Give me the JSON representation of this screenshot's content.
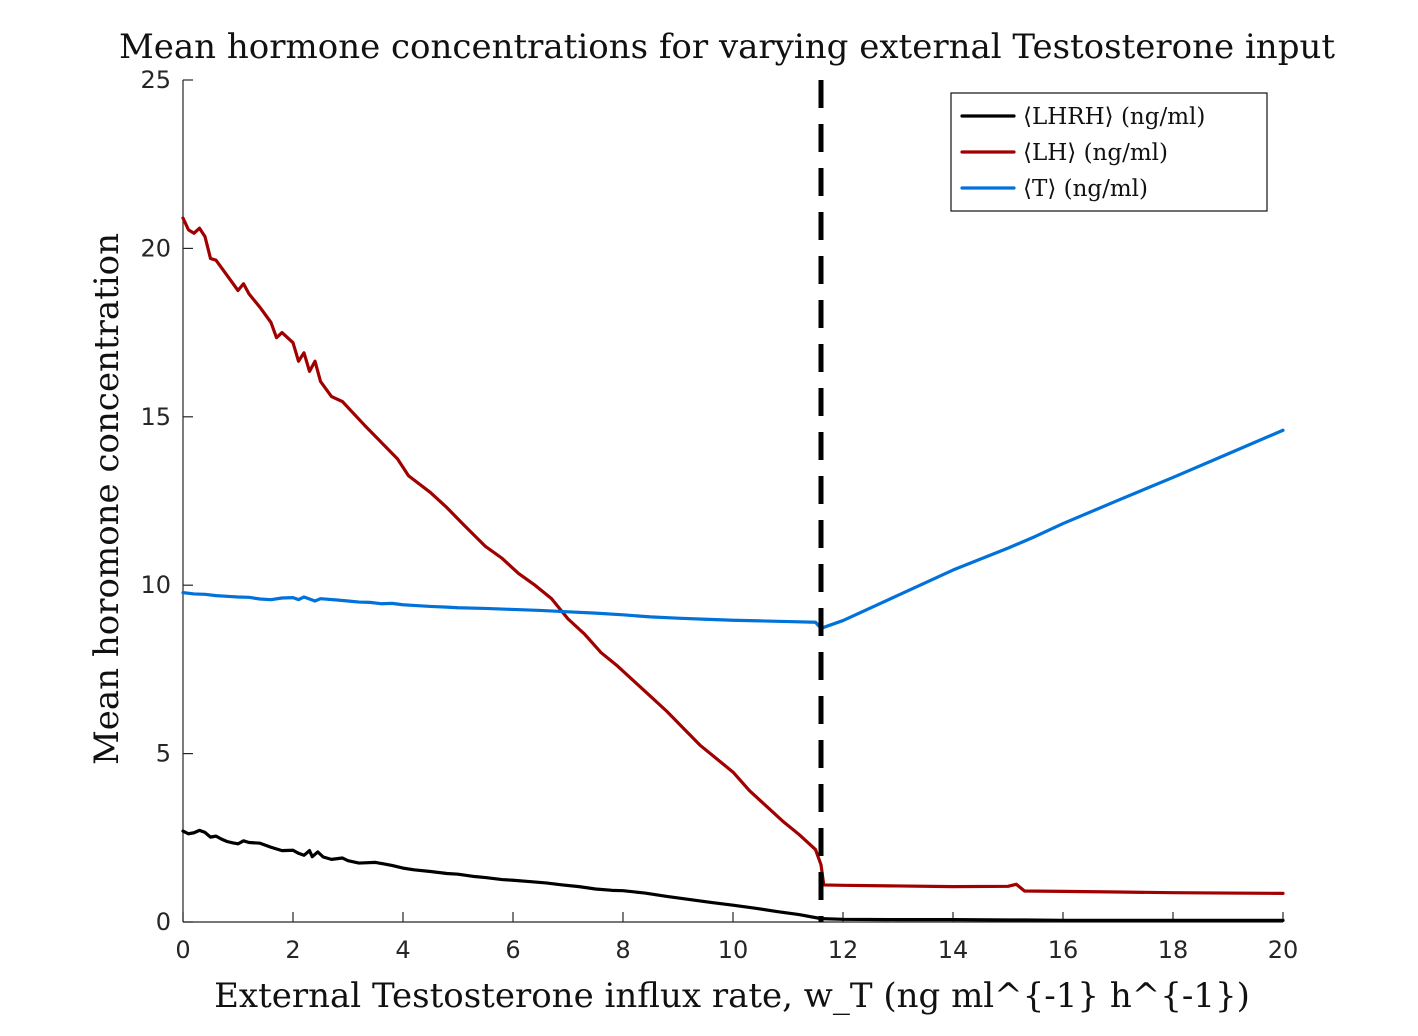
{
  "chart_data": {
    "type": "line",
    "title": "Mean hormone concentrations for varying external Testosterone input",
    "xlabel": "External Testosterone influx rate, w_T (ng ml^{-1} h^{-1})",
    "ylabel": "Mean horomone concentration",
    "xlim": [
      0,
      20
    ],
    "ylim": [
      0,
      25
    ],
    "xticks": [
      0,
      2,
      4,
      6,
      8,
      10,
      12,
      14,
      16,
      18,
      20
    ],
    "yticks": [
      0,
      5,
      10,
      15,
      20,
      25
    ],
    "grid": false,
    "legend_position": "top-right",
    "threshold_x": 11.6,
    "series": [
      {
        "name": "⟨LHRH⟩ (ng/ml)",
        "color": "#000000",
        "points": [
          [
            0,
            2.7
          ],
          [
            0.1,
            2.62
          ],
          [
            0.2,
            2.65
          ],
          [
            0.3,
            2.72
          ],
          [
            0.4,
            2.66
          ],
          [
            0.5,
            2.52
          ],
          [
            0.6,
            2.55
          ],
          [
            0.7,
            2.46
          ],
          [
            0.8,
            2.39
          ],
          [
            0.9,
            2.35
          ],
          [
            1.0,
            2.32
          ],
          [
            1.1,
            2.41
          ],
          [
            1.2,
            2.36
          ],
          [
            1.4,
            2.34
          ],
          [
            1.6,
            2.22
          ],
          [
            1.8,
            2.12
          ],
          [
            2.0,
            2.13
          ],
          [
            2.1,
            2.04
          ],
          [
            2.2,
            1.98
          ],
          [
            2.3,
            2.12
          ],
          [
            2.35,
            1.94
          ],
          [
            2.45,
            2.08
          ],
          [
            2.55,
            1.93
          ],
          [
            2.7,
            1.86
          ],
          [
            2.9,
            1.9
          ],
          [
            3.0,
            1.82
          ],
          [
            3.2,
            1.75
          ],
          [
            3.5,
            1.77
          ],
          [
            3.8,
            1.68
          ],
          [
            4.0,
            1.6
          ],
          [
            4.2,
            1.55
          ],
          [
            4.5,
            1.5
          ],
          [
            4.8,
            1.44
          ],
          [
            5.0,
            1.42
          ],
          [
            5.3,
            1.35
          ],
          [
            5.5,
            1.32
          ],
          [
            5.8,
            1.26
          ],
          [
            6.0,
            1.24
          ],
          [
            6.3,
            1.2
          ],
          [
            6.6,
            1.16
          ],
          [
            6.9,
            1.1
          ],
          [
            7.2,
            1.05
          ],
          [
            7.5,
            0.98
          ],
          [
            7.8,
            0.94
          ],
          [
            8.0,
            0.93
          ],
          [
            8.4,
            0.86
          ],
          [
            8.8,
            0.76
          ],
          [
            9.2,
            0.67
          ],
          [
            9.6,
            0.58
          ],
          [
            10.0,
            0.5
          ],
          [
            10.4,
            0.41
          ],
          [
            10.8,
            0.31
          ],
          [
            11.2,
            0.22
          ],
          [
            11.6,
            0.1
          ],
          [
            12.0,
            0.08
          ],
          [
            13.0,
            0.07
          ],
          [
            14.0,
            0.07
          ],
          [
            15.0,
            0.06
          ],
          [
            15.3,
            0.06
          ],
          [
            16.0,
            0.05
          ],
          [
            17.0,
            0.05
          ],
          [
            18.0,
            0.05
          ],
          [
            19.0,
            0.05
          ],
          [
            20.0,
            0.05
          ]
        ]
      },
      {
        "name": "⟨LH⟩ (ng/ml)",
        "color": "#a10000",
        "points": [
          [
            0,
            20.9
          ],
          [
            0.1,
            20.55
          ],
          [
            0.2,
            20.45
          ],
          [
            0.3,
            20.6
          ],
          [
            0.4,
            20.35
          ],
          [
            0.5,
            19.7
          ],
          [
            0.6,
            19.65
          ],
          [
            0.8,
            19.2
          ],
          [
            1.0,
            18.75
          ],
          [
            1.1,
            18.95
          ],
          [
            1.2,
            18.65
          ],
          [
            1.4,
            18.25
          ],
          [
            1.6,
            17.8
          ],
          [
            1.7,
            17.35
          ],
          [
            1.8,
            17.5
          ],
          [
            2.0,
            17.2
          ],
          [
            2.1,
            16.65
          ],
          [
            2.2,
            16.9
          ],
          [
            2.3,
            16.35
          ],
          [
            2.4,
            16.65
          ],
          [
            2.5,
            16.05
          ],
          [
            2.7,
            15.6
          ],
          [
            2.9,
            15.45
          ],
          [
            3.1,
            15.1
          ],
          [
            3.3,
            14.75
          ],
          [
            3.6,
            14.25
          ],
          [
            3.9,
            13.75
          ],
          [
            4.1,
            13.25
          ],
          [
            4.5,
            12.75
          ],
          [
            4.8,
            12.3
          ],
          [
            5.1,
            11.8
          ],
          [
            5.5,
            11.15
          ],
          [
            5.8,
            10.8
          ],
          [
            6.1,
            10.35
          ],
          [
            6.4,
            10.0
          ],
          [
            6.7,
            9.6
          ],
          [
            7.0,
            9.0
          ],
          [
            7.3,
            8.55
          ],
          [
            7.6,
            8.0
          ],
          [
            7.9,
            7.6
          ],
          [
            8.2,
            7.15
          ],
          [
            8.5,
            6.7
          ],
          [
            8.8,
            6.25
          ],
          [
            9.1,
            5.75
          ],
          [
            9.4,
            5.25
          ],
          [
            9.7,
            4.85
          ],
          [
            10.0,
            4.45
          ],
          [
            10.3,
            3.9
          ],
          [
            10.6,
            3.45
          ],
          [
            10.9,
            3.0
          ],
          [
            11.2,
            2.6
          ],
          [
            11.5,
            2.15
          ],
          [
            11.6,
            1.7
          ],
          [
            11.65,
            1.1
          ],
          [
            12.0,
            1.09
          ],
          [
            13.0,
            1.07
          ],
          [
            14.0,
            1.05
          ],
          [
            15.0,
            1.06
          ],
          [
            15.15,
            1.12
          ],
          [
            15.3,
            0.92
          ],
          [
            16.0,
            0.91
          ],
          [
            17.0,
            0.89
          ],
          [
            18.0,
            0.87
          ],
          [
            19.0,
            0.86
          ],
          [
            20.0,
            0.85
          ]
        ]
      },
      {
        "name": "⟨T⟩ (ng/ml)",
        "color": "#0072d9",
        "points": [
          [
            0,
            9.78
          ],
          [
            0.2,
            9.74
          ],
          [
            0.4,
            9.73
          ],
          [
            0.6,
            9.69
          ],
          [
            0.8,
            9.67
          ],
          [
            1.0,
            9.65
          ],
          [
            1.2,
            9.64
          ],
          [
            1.4,
            9.59
          ],
          [
            1.6,
            9.57
          ],
          [
            1.8,
            9.62
          ],
          [
            2.0,
            9.63
          ],
          [
            2.1,
            9.57
          ],
          [
            2.2,
            9.65
          ],
          [
            2.3,
            9.59
          ],
          [
            2.4,
            9.53
          ],
          [
            2.5,
            9.6
          ],
          [
            2.8,
            9.56
          ],
          [
            3.0,
            9.53
          ],
          [
            3.2,
            9.5
          ],
          [
            3.4,
            9.49
          ],
          [
            3.6,
            9.45
          ],
          [
            3.8,
            9.46
          ],
          [
            4.0,
            9.42
          ],
          [
            4.2,
            9.4
          ],
          [
            4.5,
            9.37
          ],
          [
            4.8,
            9.35
          ],
          [
            5.0,
            9.33
          ],
          [
            5.5,
            9.31
          ],
          [
            6.0,
            9.28
          ],
          [
            6.5,
            9.25
          ],
          [
            7.0,
            9.21
          ],
          [
            7.5,
            9.17
          ],
          [
            8.0,
            9.12
          ],
          [
            8.5,
            9.06
          ],
          [
            9.0,
            9.02
          ],
          [
            9.5,
            8.99
          ],
          [
            10.0,
            8.96
          ],
          [
            10.5,
            8.94
          ],
          [
            11.0,
            8.92
          ],
          [
            11.5,
            8.9
          ],
          [
            11.6,
            8.72
          ],
          [
            12.0,
            8.95
          ],
          [
            13.0,
            9.7
          ],
          [
            14.0,
            10.45
          ],
          [
            15.0,
            11.1
          ],
          [
            15.5,
            11.45
          ],
          [
            16.0,
            11.83
          ],
          [
            17.0,
            12.52
          ],
          [
            18.0,
            13.2
          ],
          [
            19.0,
            13.9
          ],
          [
            20.0,
            14.6
          ]
        ]
      }
    ]
  }
}
